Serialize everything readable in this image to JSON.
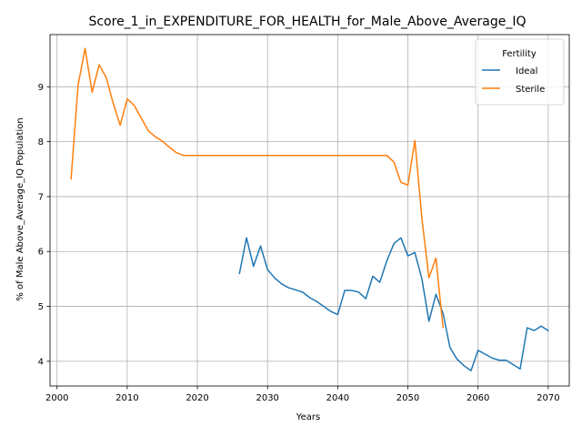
{
  "chart_data": {
    "type": "line",
    "title": "Score_1_in_EXPENDITURE_FOR_HEALTH_for_Male_Above_Average_IQ",
    "xlabel": "Years",
    "ylabel": "% of Male Above_Average_IQ Population",
    "xlim": [
      1999,
      2073
    ],
    "ylim": [
      3.55,
      9.95
    ],
    "xticks": [
      2000,
      2010,
      2020,
      2030,
      2040,
      2050,
      2060,
      2070
    ],
    "yticks": [
      4,
      5,
      6,
      7,
      8,
      9
    ],
    "grid": true,
    "legend": {
      "title": "Fertility",
      "placement": "top-right"
    },
    "series": [
      {
        "name": "Ideal",
        "color": "#1f77b4",
        "x": [
          2026,
          2027,
          2028,
          2029,
          2030,
          2031,
          2032,
          2033,
          2034,
          2035,
          2036,
          2037,
          2038,
          2039,
          2040,
          2041,
          2042,
          2043,
          2044,
          2045,
          2046,
          2047,
          2048,
          2049,
          2050,
          2051,
          2052,
          2053,
          2054,
          2055,
          2056,
          2057,
          2058,
          2059,
          2060,
          2061,
          2062,
          2063,
          2064,
          2065,
          2066,
          2067,
          2068,
          2069,
          2070
        ],
        "y": [
          5.6,
          6.25,
          5.73,
          6.1,
          5.67,
          5.52,
          5.41,
          5.34,
          5.3,
          5.26,
          5.16,
          5.09,
          5.0,
          4.91,
          4.85,
          5.29,
          5.29,
          5.26,
          5.14,
          5.55,
          5.44,
          5.83,
          6.14,
          6.25,
          5.92,
          5.98,
          5.5,
          4.73,
          5.22,
          4.88,
          4.25,
          4.04,
          3.92,
          3.83,
          4.2,
          4.13,
          4.06,
          4.02,
          4.02,
          3.94,
          3.86,
          4.61,
          4.56,
          4.64,
          4.56
        ]
      },
      {
        "name": "Sterile",
        "color": "#ff7f0e",
        "x": [
          2002,
          2003,
          2004,
          2005,
          2006,
          2007,
          2008,
          2009,
          2010,
          2011,
          2012,
          2013,
          2014,
          2015,
          2016,
          2017,
          2018,
          2019,
          2020,
          2025,
          2030,
          2035,
          2040,
          2045,
          2047,
          2048,
          2049,
          2050,
          2051,
          2052,
          2053,
          2054,
          2055
        ],
        "y": [
          7.32,
          9.03,
          9.7,
          8.9,
          9.4,
          9.17,
          8.7,
          8.3,
          8.78,
          8.66,
          8.43,
          8.2,
          8.09,
          8.01,
          7.9,
          7.8,
          7.75,
          7.75,
          7.75,
          7.75,
          7.75,
          7.75,
          7.75,
          7.75,
          7.75,
          7.63,
          7.26,
          7.21,
          8.02,
          6.6,
          5.52,
          5.88,
          4.62
        ]
      }
    ]
  }
}
